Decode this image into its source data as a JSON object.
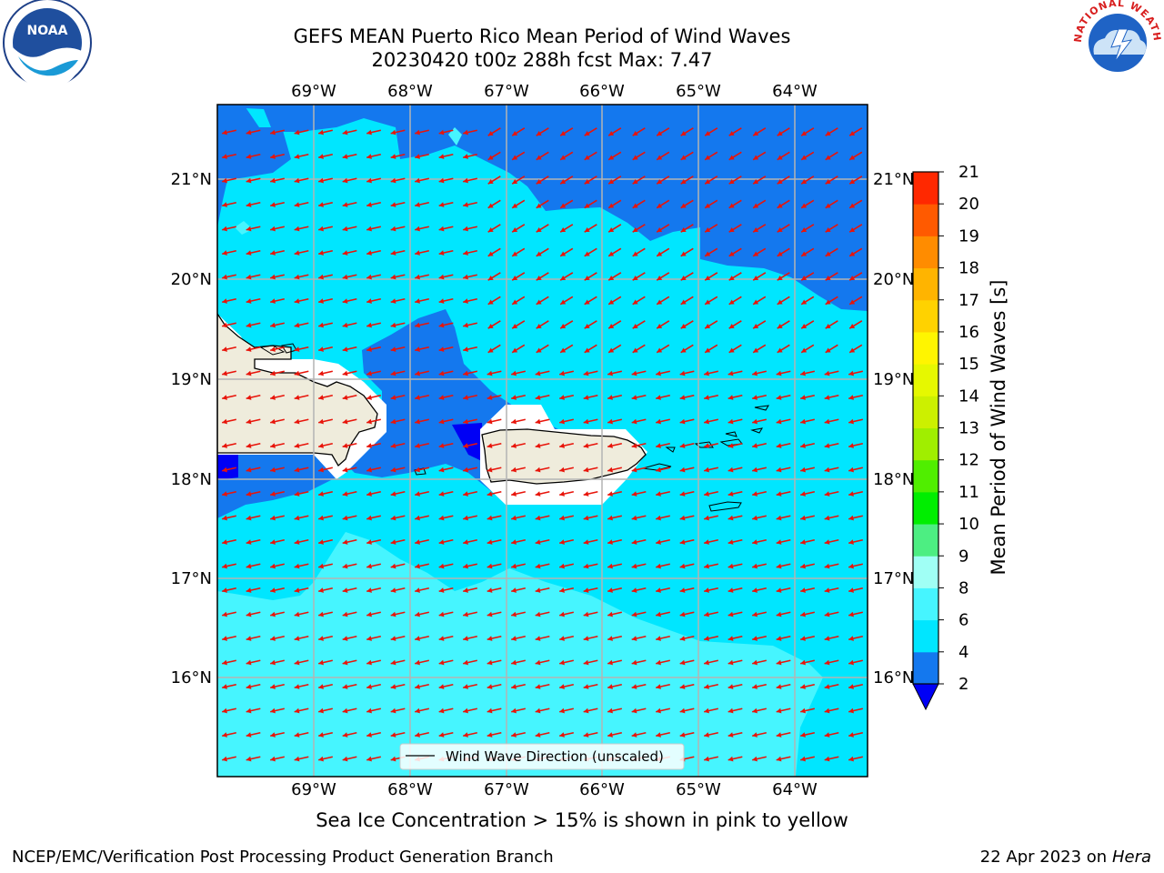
{
  "title": {
    "line1": "GEFS MEAN Puerto Rico Mean Period of Wind Waves",
    "line2": "20230420 t00z 288h fcst   Max: 7.47"
  },
  "map": {
    "lon_labels": [
      "69°W",
      "68°W",
      "67°W",
      "66°W",
      "65°W",
      "64°W"
    ],
    "lat_labels": [
      "21°N",
      "20°N",
      "19°N",
      "18°N",
      "17°N",
      "16°N"
    ],
    "arrow_color": "#e8140a",
    "land_color": "#efecdc",
    "legend_label": "Wind Wave Direction (unscaled)"
  },
  "colorbar": {
    "label": "Mean Period of Wind Waves [s]",
    "ticks": [
      "2",
      "4",
      "6",
      "8",
      "9",
      "10",
      "11",
      "12",
      "13",
      "14",
      "15",
      "16",
      "17",
      "18",
      "19",
      "20",
      "21"
    ],
    "colors": [
      "#1478ee",
      "#00e6ff",
      "#46f5ff",
      "#a0fff5",
      "#4dee82",
      "#00ee00",
      "#50ee00",
      "#a0ee00",
      "#ccf000",
      "#e6f800",
      "#fff500",
      "#ffd200",
      "#ffb400",
      "#ff8c00",
      "#ff5a00",
      "#ff2800",
      "#ff0000"
    ],
    "under_color": "#0000f5"
  },
  "footer": {
    "sea_ice": "Sea Ice Concentration > 15% is shown in pink to yellow",
    "branch": "NCEP/EMC/Verification Post Processing Product Generation Branch",
    "date_prefix": "22 Apr 2023 on ",
    "machine": "Hera"
  },
  "logos": {
    "noaa_text": "NOAA",
    "nws_text": "NATIONAL WEATHER SERVICE"
  }
}
